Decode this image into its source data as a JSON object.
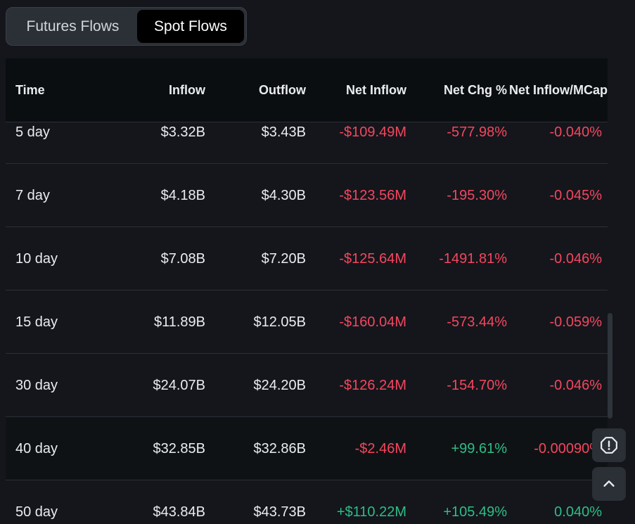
{
  "tabs": [
    {
      "label": "Futures Flows"
    },
    {
      "label": "Spot Flows"
    }
  ],
  "table": {
    "headers": {
      "time": "Time",
      "inflow": "Inflow",
      "outflow": "Outflow",
      "net_inflow": "Net Inflow",
      "net_chg": "Net Chg %",
      "net_inflow_mcap": "Net Inflow/MCap"
    },
    "rows": [
      {
        "time": "5 day",
        "inflow": "$3.32B",
        "outflow": "$3.43B",
        "net_inflow": "-$109.49M",
        "net_chg": "-577.98%",
        "mcap": "-0.040%"
      },
      {
        "time": "7 day",
        "inflow": "$4.18B",
        "outflow": "$4.30B",
        "net_inflow": "-$123.56M",
        "net_chg": "-195.30%",
        "mcap": "-0.045%"
      },
      {
        "time": "10 day",
        "inflow": "$7.08B",
        "outflow": "$7.20B",
        "net_inflow": "-$125.64M",
        "net_chg": "-1491.81%",
        "mcap": "-0.046%"
      },
      {
        "time": "15 day",
        "inflow": "$11.89B",
        "outflow": "$12.05B",
        "net_inflow": "-$160.04M",
        "net_chg": "-573.44%",
        "mcap": "-0.059%"
      },
      {
        "time": "30 day",
        "inflow": "$24.07B",
        "outflow": "$24.20B",
        "net_inflow": "-$126.24M",
        "net_chg": "-154.70%",
        "mcap": "-0.046%"
      },
      {
        "time": "40 day",
        "inflow": "$32.85B",
        "outflow": "$32.86B",
        "net_inflow": "-$2.46M",
        "net_chg": "+99.61%",
        "mcap": "-0.00090%"
      },
      {
        "time": "50 day",
        "inflow": "$43.84B",
        "outflow": "$43.73B",
        "net_inflow": "+$110.22M",
        "net_chg": "+105.49%",
        "mcap": "0.040%"
      }
    ]
  },
  "colors": {
    "negative": "#f6465d",
    "positive": "#2ebd85",
    "background": "#14161c"
  },
  "icons": {
    "alert": "alert-octagon-icon",
    "scroll_top": "chevron-up-icon"
  }
}
